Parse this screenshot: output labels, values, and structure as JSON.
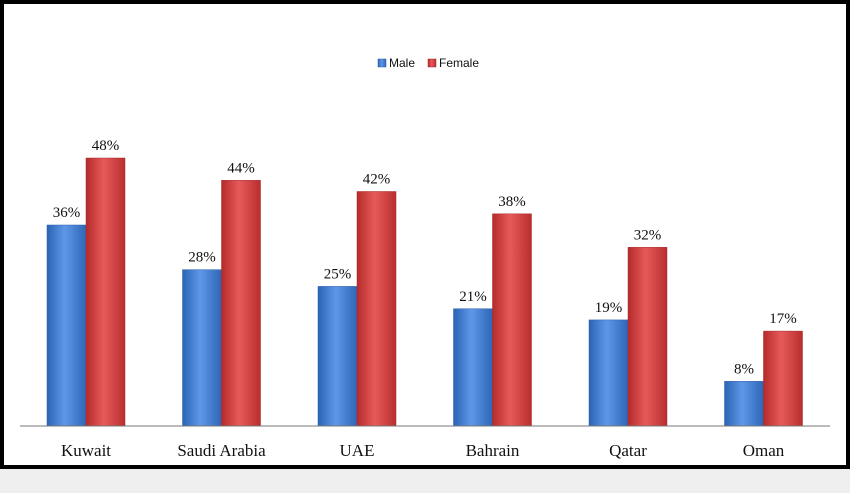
{
  "chart_data": {
    "type": "bar",
    "categories": [
      "Kuwait",
      "Saudi Arabia",
      "UAE",
      "Bahrain",
      "Qatar",
      "Oman"
    ],
    "series": [
      {
        "name": "Male",
        "values": [
          36,
          28,
          25,
          21,
          19,
          8
        ],
        "labels": [
          "36%",
          "28%",
          "25%",
          "21%",
          "19%",
          "8%"
        ],
        "color": "#4a86d6"
      },
      {
        "name": "Female",
        "values": [
          48,
          44,
          42,
          38,
          32,
          17
        ],
        "labels": [
          "48%",
          "44%",
          "42%",
          "38%",
          "32%",
          "17%"
        ],
        "color": "#d64545"
      }
    ],
    "title": "",
    "xlabel": "",
    "ylabel": "",
    "ylim": [
      0,
      48
    ],
    "grid": false,
    "legend_position": "top-center"
  }
}
